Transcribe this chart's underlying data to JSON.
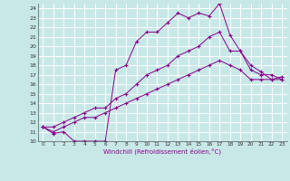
{
  "xlabel": "Windchill (Refroidissement éolien,°C)",
  "line_color": "#880088",
  "bg_color": "#c8e8e8",
  "grid_color": "#b0d8d8",
  "xlim": [
    -0.5,
    23.5
  ],
  "ylim": [
    10,
    24.5
  ],
  "xticks": [
    0,
    1,
    2,
    3,
    4,
    5,
    6,
    7,
    8,
    9,
    10,
    11,
    12,
    13,
    14,
    15,
    16,
    17,
    18,
    19,
    20,
    21,
    22,
    23
  ],
  "yticks": [
    10,
    11,
    12,
    13,
    14,
    15,
    16,
    17,
    18,
    19,
    20,
    21,
    22,
    23,
    24
  ],
  "series": [
    [
      11.5,
      10.8,
      11.0,
      10.0,
      10.0,
      10.0,
      10.0,
      17.5,
      18.0,
      20.5,
      21.5,
      21.5,
      22.5,
      23.5,
      23.0,
      23.5,
      23.2,
      24.5,
      21.2,
      19.5,
      18.0,
      17.3,
      16.5,
      16.8
    ],
    [
      11.5,
      11.5,
      12.0,
      12.5,
      13.0,
      13.5,
      13.5,
      14.5,
      15.0,
      16.0,
      17.0,
      17.5,
      18.0,
      19.0,
      19.5,
      20.0,
      21.0,
      21.5,
      19.5,
      19.5,
      17.5,
      17.0,
      17.0,
      16.5
    ],
    [
      11.5,
      11.0,
      11.5,
      12.0,
      12.5,
      12.5,
      13.0,
      13.5,
      14.0,
      14.5,
      15.0,
      15.5,
      16.0,
      16.5,
      17.0,
      17.5,
      18.0,
      18.5,
      18.0,
      17.5,
      16.5,
      16.5,
      16.5,
      16.5
    ]
  ]
}
